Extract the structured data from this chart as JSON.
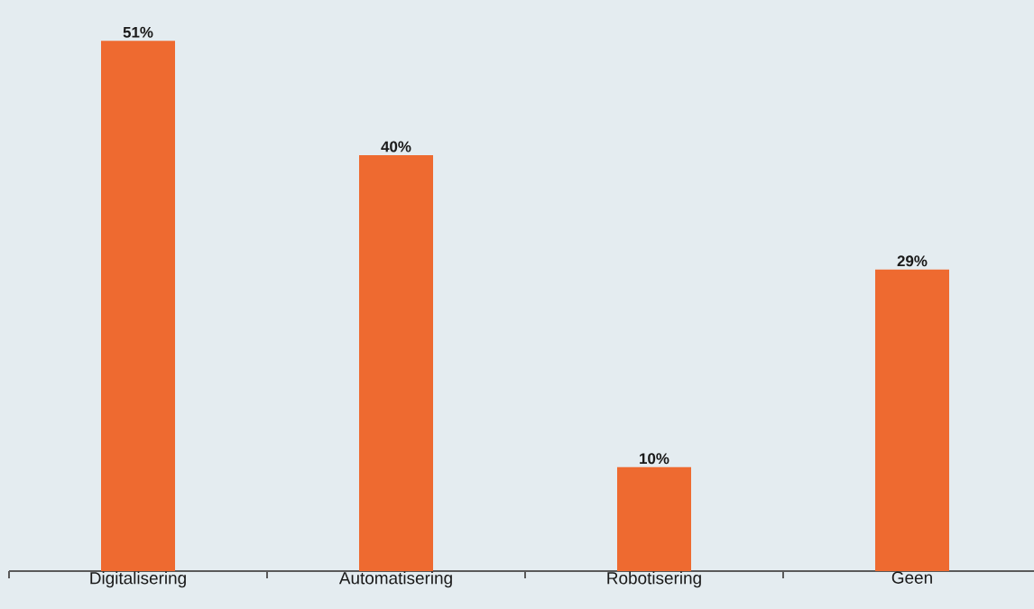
{
  "chart_data": {
    "type": "bar",
    "categories": [
      "Digitalisering",
      "Automatisering",
      "Robotisering",
      "Geen"
    ],
    "values": [
      51,
      40,
      10,
      29
    ],
    "value_labels": [
      "51%",
      "40%",
      "10%",
      "29%"
    ],
    "color": "#ee6a30"
  }
}
